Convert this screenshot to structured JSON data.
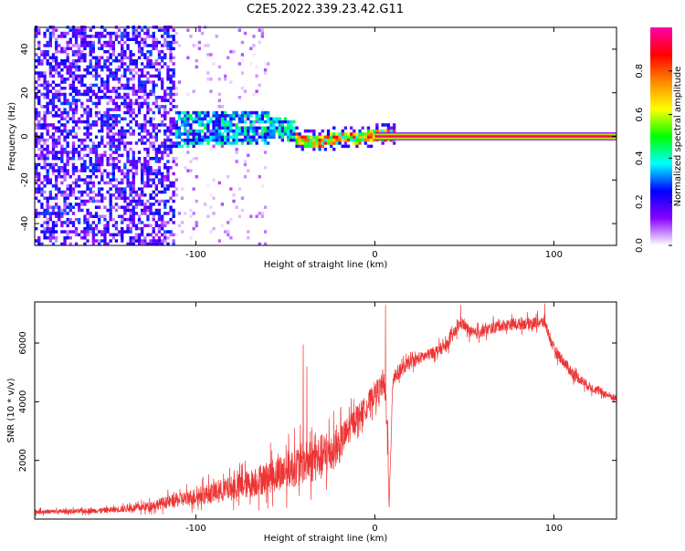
{
  "page_title": "C2E5.2022.339.23.42.G11",
  "chart_data": [
    {
      "type": "heatmap",
      "name": "spectrogram",
      "xlabel": "Height of straight line (km)",
      "ylabel": "Frequency (Hz)",
      "xlim": [
        -190,
        135
      ],
      "ylim": [
        -50,
        50
      ],
      "x_ticks": [
        -100,
        0,
        100
      ],
      "x_tick_labels": [
        "-100",
        "0",
        "100"
      ],
      "y_ticks": [
        -40,
        -20,
        0,
        20,
        40
      ],
      "y_tick_labels": [
        "-40",
        "-20",
        "0",
        "20",
        "40"
      ],
      "grid": false,
      "colorbar": {
        "label": "Normalized spectral amplitude",
        "range": [
          0,
          1
        ],
        "ticks": [
          0.0,
          0.2,
          0.4,
          0.6,
          0.8
        ],
        "tick_labels": [
          "0.0",
          "0.2",
          "0.4",
          "0.6",
          "0.8"
        ],
        "colormap": [
          "#ffffff",
          "#8800ff",
          "#0000ff",
          "#00ffff",
          "#00ff00",
          "#ffff00",
          "#ff8800",
          "#ff0000",
          "#ff00aa"
        ]
      },
      "regions": [
        {
          "x_range": [
            -190,
            -113
          ],
          "f_range": [
            -50,
            50
          ],
          "amplitude": [
            0.05,
            0.3
          ],
          "description_free": true
        },
        {
          "x_range": [
            -113,
            -60
          ],
          "f_range": [
            -50,
            50
          ],
          "amplitude": [
            0.0,
            0.1
          ]
        },
        {
          "x_range": [
            -110,
            -45
          ],
          "f_range": [
            -5,
            12
          ],
          "amplitude": [
            0.2,
            0.5
          ]
        },
        {
          "x_range": [
            -45,
            0
          ],
          "f_range": [
            -5,
            5
          ],
          "amplitude": [
            0.3,
            0.9
          ]
        },
        {
          "x_range": [
            0,
            135
          ],
          "f_range": [
            -1.5,
            1.5
          ],
          "amplitude": [
            0.6,
            1.0
          ]
        }
      ],
      "carrier_track": [
        {
          "x": -110,
          "f": 0
        },
        {
          "x": -80,
          "f": 1
        },
        {
          "x": -50,
          "f": 0
        },
        {
          "x": -40,
          "f": -3
        },
        {
          "x": -30,
          "f": -3
        },
        {
          "x": -20,
          "f": -1
        },
        {
          "x": -10,
          "f": -1.5
        },
        {
          "x": 0,
          "f": 0
        },
        {
          "x": 135,
          "f": 0
        }
      ]
    },
    {
      "type": "line",
      "name": "snr",
      "xlabel": "Height of straight line (km)",
      "ylabel": "SNR (10 * v/v)",
      "xlim": [
        -190,
        135
      ],
      "ylim": [
        0,
        7400
      ],
      "x_ticks": [
        -100,
        0,
        100
      ],
      "x_tick_labels": [
        "-100",
        "0",
        "100"
      ],
      "y_ticks": [
        2000,
        4000,
        6000
      ],
      "y_tick_labels": [
        "2000",
        "4000",
        "6000"
      ],
      "grid": false,
      "line_color": "#ee3333",
      "series": [
        {
          "x": [
            -190,
            -170,
            -150,
            -130,
            -110,
            -90,
            -70,
            -50,
            -40,
            -30,
            -20,
            -10,
            -5,
            0,
            5,
            7,
            8,
            10,
            15,
            20,
            30,
            40,
            48,
            55,
            70,
            90,
            95,
            100,
            110,
            120,
            135
          ],
          "values": [
            250,
            260,
            300,
            400,
            650,
            900,
            1200,
            1650,
            1900,
            2100,
            2500,
            3500,
            3800,
            4300,
            4600,
            3500,
            400,
            4800,
            5100,
            5350,
            5600,
            5900,
            6700,
            6300,
            6600,
            6700,
            6700,
            5800,
            5000,
            4500,
            4100
          ],
          "noise": [
            100,
            100,
            120,
            180,
            300,
            450,
            600,
            800,
            900,
            1000,
            800,
            500,
            500,
            500,
            500,
            900,
            200,
            400,
            300,
            250,
            250,
            250,
            250,
            250,
            250,
            250,
            250,
            250,
            250,
            200,
            150
          ]
        }
      ],
      "spikes": [
        {
          "x": -40,
          "value": 5950
        },
        {
          "x": -38,
          "value": 5200
        },
        {
          "x": 6,
          "value": 7300
        },
        {
          "x": 8,
          "value": 400
        },
        {
          "x": 48,
          "value": 7300
        },
        {
          "x": 95,
          "value": 7350
        }
      ]
    }
  ]
}
